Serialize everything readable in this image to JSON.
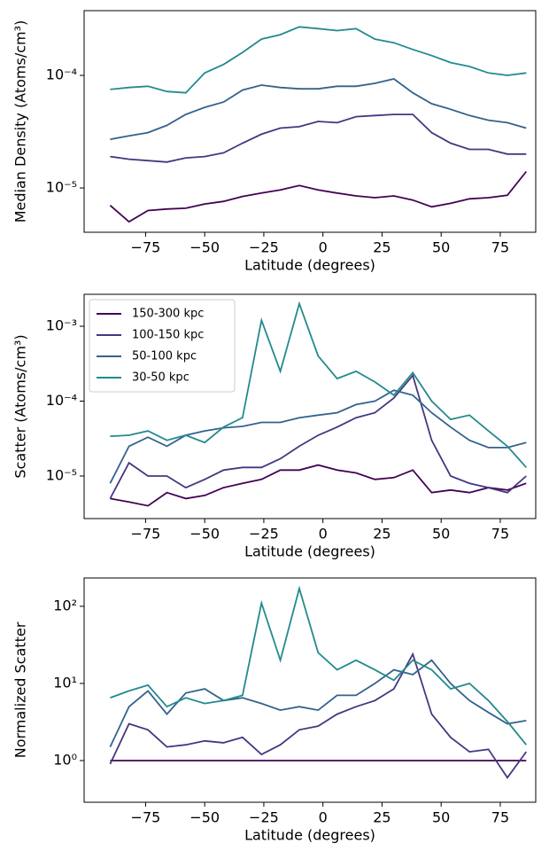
{
  "chart_data": [
    {
      "type": "line",
      "ylabel": "Median Density (Atoms/cm³)",
      "xlabel": "Latitude (degrees)",
      "yscale": "log",
      "xlim": [
        -101,
        90
      ],
      "ylim": [
        4.04e-06,
        0.000376
      ],
      "xticks": [
        {
          "value": -75,
          "label": "−75"
        },
        {
          "value": -50,
          "label": "−50"
        },
        {
          "value": -25,
          "label": "−25"
        },
        0,
        25,
        50,
        75
      ],
      "yticks": [
        {
          "value": 1e-05,
          "label": "10⁻⁵"
        },
        {
          "value": 0.0001,
          "label": "10⁻⁴"
        }
      ],
      "x": [
        -90,
        -82,
        -74,
        -66,
        -58,
        -50,
        -42,
        -34,
        -26,
        -18,
        -10,
        -2,
        6,
        14,
        22,
        30,
        38,
        46,
        54,
        62,
        70,
        78,
        86
      ],
      "series": [
        {
          "color": "#440154",
          "values": [
            7e-06,
            5e-06,
            6.3e-06,
            6.5e-06,
            6.6e-06,
            7.2e-06,
            7.6e-06,
            8.4e-06,
            9e-06,
            9.6e-06,
            1.05e-05,
            9.6e-06,
            9e-06,
            8.5e-06,
            8.2e-06,
            8.5e-06,
            7.8e-06,
            6.8e-06,
            7.3e-06,
            8e-06,
            8.2e-06,
            8.6e-06,
            1.4e-05
          ]
        },
        {
          "color": "#453781",
          "values": [
            1.9e-05,
            1.8e-05,
            1.75e-05,
            1.7e-05,
            1.85e-05,
            1.9e-05,
            2.05e-05,
            2.5e-05,
            3e-05,
            3.4e-05,
            3.5e-05,
            3.9e-05,
            3.8e-05,
            4.3e-05,
            4.4e-05,
            4.5e-05,
            4.5e-05,
            3.1e-05,
            2.5e-05,
            2.2e-05,
            2.2e-05,
            2e-05,
            2e-05
          ]
        },
        {
          "color": "#33638d",
          "values": [
            2.7e-05,
            2.9e-05,
            3.1e-05,
            3.6e-05,
            4.5e-05,
            5.2e-05,
            5.8e-05,
            7.4e-05,
            8.2e-05,
            7.8e-05,
            7.6e-05,
            7.6e-05,
            8e-05,
            8e-05,
            8.5e-05,
            9.3e-05,
            7e-05,
            5.6e-05,
            5e-05,
            4.4e-05,
            4e-05,
            3.8e-05,
            3.4e-05
          ]
        },
        {
          "color": "#238a8d",
          "values": [
            7.5e-05,
            7.8e-05,
            8e-05,
            7.2e-05,
            7e-05,
            0.000105,
            0.000125,
            0.00016,
            0.00021,
            0.00023,
            0.00027,
            0.00026,
            0.00025,
            0.00026,
            0.00021,
            0.000195,
            0.00017,
            0.00015,
            0.00013,
            0.00012,
            0.000105,
            0.0001,
            0.000105
          ]
        }
      ]
    },
    {
      "type": "line",
      "ylabel": "Scatter (Atoms/cm³)",
      "xlabel": "Latitude (degrees)",
      "yscale": "log",
      "legend": "upper left",
      "xlim": [
        -101,
        90
      ],
      "ylim": [
        2.7e-06,
        0.00267
      ],
      "xticks": [
        {
          "value": -75,
          "label": "−75"
        },
        {
          "value": -50,
          "label": "−50"
        },
        {
          "value": -25,
          "label": "−25"
        },
        0,
        25,
        50,
        75
      ],
      "yticks": [
        {
          "value": 1e-05,
          "label": "10⁻⁵"
        },
        {
          "value": 0.0001,
          "label": "10⁻⁴"
        },
        {
          "value": 0.001,
          "label": "10⁻³"
        }
      ],
      "x": [
        -90,
        -82,
        -74,
        -66,
        -58,
        -50,
        -42,
        -34,
        -26,
        -18,
        -10,
        -2,
        6,
        14,
        22,
        30,
        38,
        46,
        54,
        62,
        70,
        78,
        86
      ],
      "series": [
        {
          "name": "150-300 kpc",
          "color": "#440154",
          "values": [
            5e-06,
            4.5e-06,
            4e-06,
            6e-06,
            5e-06,
            5.5e-06,
            7e-06,
            8e-06,
            9e-06,
            1.2e-05,
            1.2e-05,
            1.4e-05,
            1.2e-05,
            1.1e-05,
            9e-06,
            9.5e-06,
            1.2e-05,
            6e-06,
            6.5e-06,
            6e-06,
            7e-06,
            6.5e-06,
            8e-06
          ]
        },
        {
          "name": "100-150 kpc",
          "color": "#453781",
          "values": [
            5e-06,
            1.5e-05,
            1e-05,
            1e-05,
            7e-06,
            9e-06,
            1.2e-05,
            1.3e-05,
            1.3e-05,
            1.7e-05,
            2.5e-05,
            3.5e-05,
            4.5e-05,
            6e-05,
            7e-05,
            0.00011,
            0.00022,
            3e-05,
            1e-05,
            8e-06,
            7e-06,
            6e-06,
            1e-05
          ]
        },
        {
          "name": "50-100 kpc",
          "color": "#33638d",
          "values": [
            8e-06,
            2.5e-05,
            3.3e-05,
            2.5e-05,
            3.5e-05,
            4e-05,
            4.4e-05,
            4.6e-05,
            5.2e-05,
            5.2e-05,
            6e-05,
            6.5e-05,
            7e-05,
            9e-05,
            0.0001,
            0.00014,
            0.00012,
            7e-05,
            4.5e-05,
            3e-05,
            2.4e-05,
            2.4e-05,
            2.8e-05
          ]
        },
        {
          "name": "30-50 kpc",
          "color": "#238a8d",
          "values": [
            3.4e-05,
            3.5e-05,
            4e-05,
            3e-05,
            3.5e-05,
            2.8e-05,
            4.5e-05,
            6e-05,
            0.0012,
            0.00025,
            0.002,
            0.0004,
            0.0002,
            0.00025,
            0.00018,
            0.00012,
            0.00024,
            0.0001,
            5.7e-05,
            6.5e-05,
            4e-05,
            2.5e-05,
            1.3e-05
          ]
        }
      ]
    },
    {
      "type": "line",
      "ylabel": "Normalized Scatter",
      "xlabel": "Latitude (degrees)",
      "yscale": "log",
      "xlim": [
        -101,
        90
      ],
      "ylim": [
        0.288,
        233
      ],
      "xticks": [
        {
          "value": -75,
          "label": "−75"
        },
        {
          "value": -50,
          "label": "−50"
        },
        {
          "value": -25,
          "label": "−25"
        },
        0,
        25,
        50,
        75
      ],
      "yticks": [
        {
          "value": 1,
          "label": "10⁰"
        },
        {
          "value": 10,
          "label": "10¹"
        },
        {
          "value": 100,
          "label": "10²"
        }
      ],
      "x": [
        -90,
        -82,
        -74,
        -66,
        -58,
        -50,
        -42,
        -34,
        -26,
        -18,
        -10,
        -2,
        6,
        14,
        22,
        30,
        38,
        46,
        54,
        62,
        70,
        78,
        86
      ],
      "series": [
        {
          "color": "#440154",
          "values": [
            1,
            1,
            1,
            1,
            1,
            1,
            1,
            1,
            1,
            1,
            1,
            1,
            1,
            1,
            1,
            1,
            1,
            1,
            1,
            1,
            1,
            1,
            1
          ]
        },
        {
          "color": "#453781",
          "values": [
            0.9,
            3,
            2.5,
            1.5,
            1.6,
            1.8,
            1.7,
            2,
            1.2,
            1.6,
            2.5,
            2.8,
            4,
            5,
            6,
            8.5,
            24,
            4,
            2,
            1.3,
            1.4,
            0.6,
            1.3
          ]
        },
        {
          "color": "#33638d",
          "values": [
            1.5,
            5,
            8,
            4,
            7.5,
            8.5,
            6,
            6.5,
            5.5,
            4.5,
            5,
            4.5,
            7,
            7,
            10,
            15,
            13,
            20,
            10,
            6,
            4.2,
            3,
            3.3
          ]
        },
        {
          "color": "#238a8d",
          "values": [
            6.5,
            8,
            9.5,
            5,
            6.5,
            5.5,
            6,
            7,
            110,
            20,
            170,
            25,
            15,
            20,
            15,
            11,
            20,
            15,
            8.5,
            10,
            6,
            3.2,
            1.6
          ]
        }
      ]
    }
  ]
}
